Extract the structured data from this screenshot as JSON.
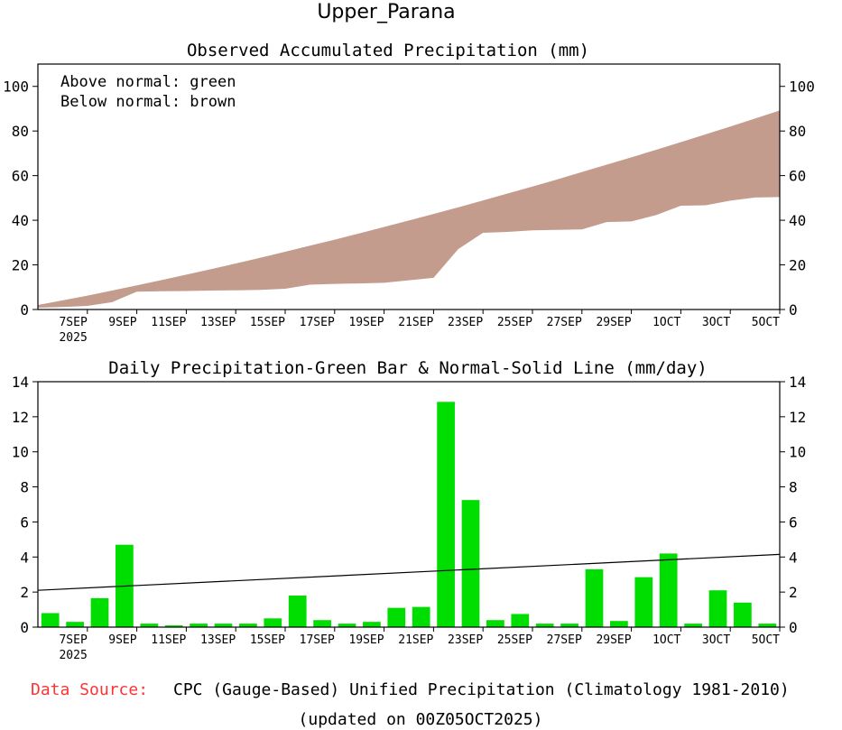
{
  "chart_data": [
    {
      "type": "area",
      "title": "Upper_Parana",
      "subtitle": "Observed Accumulated Precipitation (mm)",
      "notes": [
        "Above normal: green",
        "Below normal: brown"
      ],
      "colors": {
        "above": "#00cc00",
        "below": "#c49c8e"
      },
      "x_labels": [
        {
          "day": 2,
          "label": "7SEP",
          "sub": "2025"
        },
        {
          "day": 4,
          "label": "9SEP"
        },
        {
          "day": 6,
          "label": "11SEP"
        },
        {
          "day": 8,
          "label": "13SEP"
        },
        {
          "day": 10,
          "label": "15SEP"
        },
        {
          "day": 12,
          "label": "17SEP"
        },
        {
          "day": 14,
          "label": "19SEP"
        },
        {
          "day": 16,
          "label": "21SEP"
        },
        {
          "day": 18,
          "label": "23SEP"
        },
        {
          "day": 20,
          "label": "25SEP"
        },
        {
          "day": 22,
          "label": "27SEP"
        },
        {
          "day": 24,
          "label": "29SEP"
        },
        {
          "day": 26,
          "label": "1OCT"
        },
        {
          "day": 28,
          "label": "3OCT"
        },
        {
          "day": 30,
          "label": "5OCT"
        }
      ],
      "xlim": [
        0,
        30
      ],
      "ylim": [
        0,
        110
      ],
      "yticks": [
        0,
        20,
        40,
        60,
        80,
        100
      ],
      "observed": [
        0.8,
        1.1,
        1.6,
        3.3,
        8.0,
        8.2,
        8.3,
        8.5,
        8.6,
        8.8,
        9.3,
        11.1,
        11.5,
        11.7,
        12.0,
        13.1,
        14.2,
        27.1,
        34.4,
        34.8,
        35.5,
        35.7,
        35.9,
        39.2,
        39.5,
        42.3,
        46.5,
        46.7,
        48.8,
        50.2,
        50.4
      ],
      "normal": [
        2.0,
        4.1,
        6.2,
        8.5,
        10.8,
        13.2,
        15.6,
        18.1,
        20.6,
        23.2,
        25.9,
        28.6,
        31.3,
        34.1,
        37.0,
        39.9,
        42.8,
        45.8,
        48.9,
        52.0,
        55.1,
        58.3,
        61.6,
        64.9,
        68.2,
        71.6,
        75.0,
        78.5,
        82.0,
        85.6,
        89.2
      ]
    },
    {
      "type": "bar",
      "subtitle": "Daily Precipitation-Green Bar & Normal-Solid Line (mm/day)",
      "colors": {
        "bar": "#00dd00",
        "line": "#000000"
      },
      "x_labels": [
        {
          "day": 2,
          "label": "7SEP",
          "sub": "2025"
        },
        {
          "day": 4,
          "label": "9SEP"
        },
        {
          "day": 6,
          "label": "11SEP"
        },
        {
          "day": 8,
          "label": "13SEP"
        },
        {
          "day": 10,
          "label": "15SEP"
        },
        {
          "day": 12,
          "label": "17SEP"
        },
        {
          "day": 14,
          "label": "19SEP"
        },
        {
          "day": 16,
          "label": "21SEP"
        },
        {
          "day": 18,
          "label": "23SEP"
        },
        {
          "day": 20,
          "label": "25SEP"
        },
        {
          "day": 22,
          "label": "27SEP"
        },
        {
          "day": 24,
          "label": "29SEP"
        },
        {
          "day": 26,
          "label": "1OCT"
        },
        {
          "day": 28,
          "label": "3OCT"
        },
        {
          "day": 30,
          "label": "5OCT"
        }
      ],
      "xlim": [
        0,
        30
      ],
      "ylim": [
        0,
        14
      ],
      "yticks": [
        0,
        2,
        4,
        6,
        8,
        10,
        12,
        14
      ],
      "values": [
        0.8,
        0.3,
        1.65,
        4.7,
        0.2,
        0.1,
        0.2,
        0.2,
        0.2,
        0.5,
        1.8,
        0.4,
        0.2,
        0.3,
        1.1,
        1.15,
        12.85,
        7.25,
        0.4,
        0.75,
        0.2,
        0.2,
        3.3,
        0.35,
        2.85,
        4.2,
        0.2,
        2.1,
        1.4,
        0.2
      ],
      "normal_line": [
        2.1,
        4.15
      ]
    }
  ],
  "footer": {
    "source_label": "Data Source:",
    "source_text": "CPC (Gauge-Based) Unified Precipitation (Climatology 1981-2010)",
    "updated": "(updated on 00Z05OCT2025)",
    "source_label_color": "#ff3333"
  }
}
